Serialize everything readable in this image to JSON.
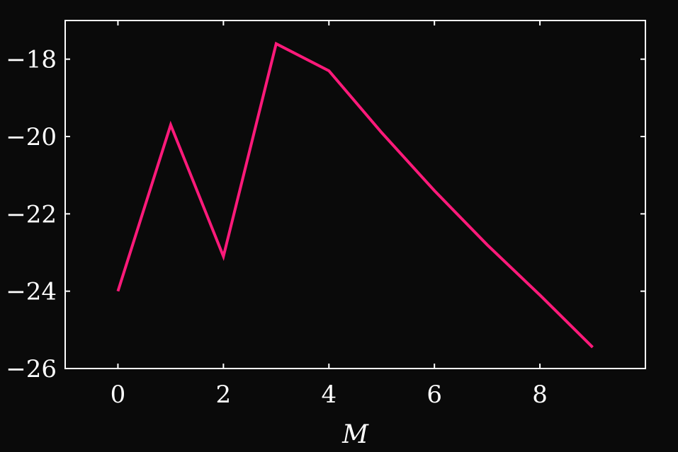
{
  "chart_data": {
    "type": "line",
    "title": "",
    "xlabel": "M",
    "ylabel": "",
    "xlim": [
      -1,
      10
    ],
    "ylim": [
      -26,
      -17
    ],
    "xticks": [
      0,
      2,
      4,
      6,
      8
    ],
    "xtick_labels": [
      "0",
      "2",
      "4",
      "6",
      "8"
    ],
    "yticks": [
      -26,
      -24,
      -22,
      -20,
      -18
    ],
    "ytick_labels": [
      "−26",
      "−24",
      "−22",
      "−20",
      "−18"
    ],
    "grid": false,
    "legend": "none",
    "series": [
      {
        "color": "#ff1a7a",
        "x": [
          0,
          1,
          2,
          3,
          4,
          5,
          6,
          7,
          8,
          9
        ],
        "y": [
          -24.0,
          -19.7,
          -23.1,
          -17.6,
          -18.3,
          -19.9,
          -21.4,
          -22.8,
          -24.1,
          -25.45
        ]
      }
    ]
  },
  "style": {
    "background": "#0a0a0a",
    "axis_color": "#ffffff"
  }
}
